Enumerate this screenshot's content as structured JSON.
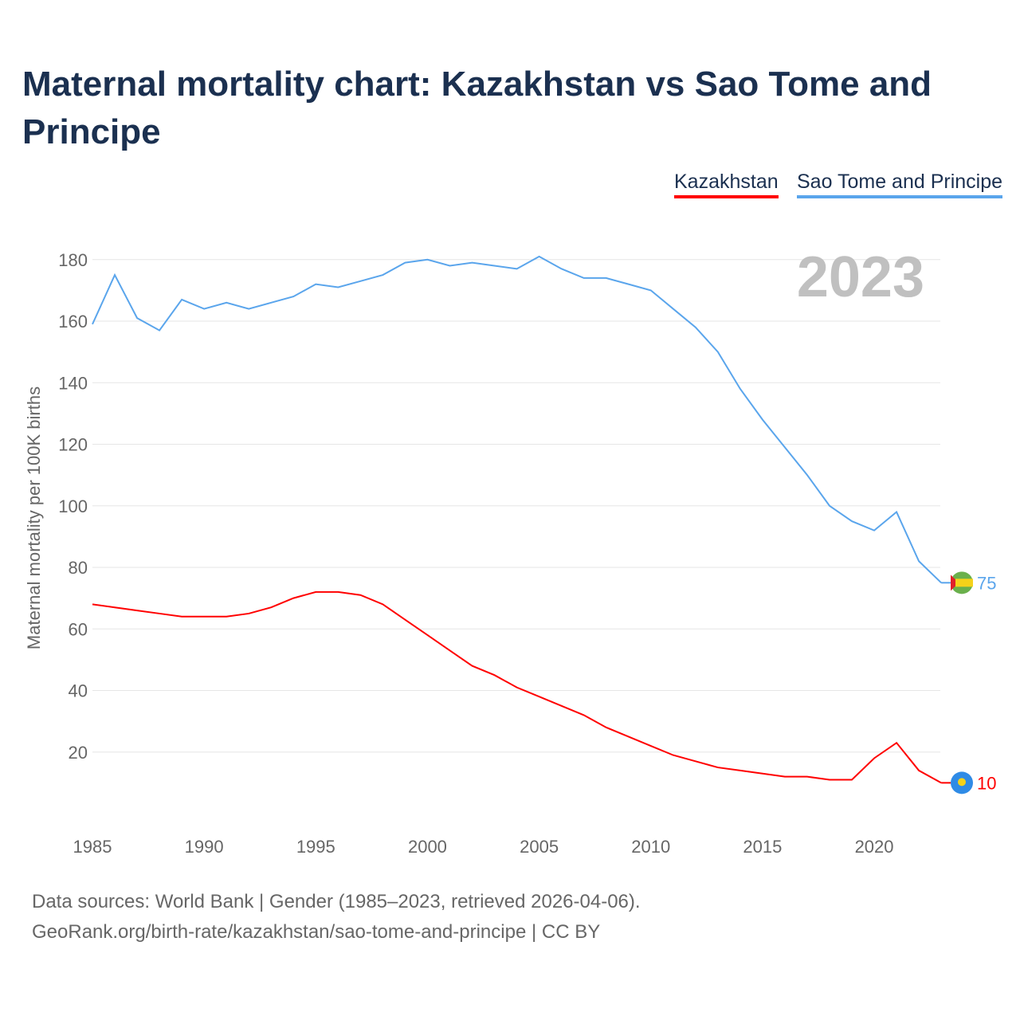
{
  "title": "Maternal mortality chart: Kazakhstan vs Sao Tome and Principe",
  "footer": {
    "line1": "Data sources: World Bank | Gender (1985–2023, retrieved 2026-04-06).",
    "line2": "GeoRank.org/birth-rate/kazakhstan/sao-tome-and-principe | CC BY"
  },
  "chart_data": {
    "type": "line",
    "title": "Maternal mortality chart: Kazakhstan vs Sao Tome and Principe",
    "ylabel": "Maternal mortality per 100K births",
    "xlabel": "",
    "year_label": "2023",
    "ylim": [
      0,
      190
    ],
    "xlim": [
      1985,
      2023
    ],
    "yticks": [
      20,
      40,
      60,
      80,
      100,
      120,
      140,
      160,
      180
    ],
    "xticks": [
      1985,
      1990,
      1995,
      2000,
      2005,
      2010,
      2015,
      2020
    ],
    "legend_position": "top-right",
    "x": [
      1985,
      1986,
      1987,
      1988,
      1989,
      1990,
      1991,
      1992,
      1993,
      1994,
      1995,
      1996,
      1997,
      1998,
      1999,
      2000,
      2001,
      2002,
      2003,
      2004,
      2005,
      2006,
      2007,
      2008,
      2009,
      2010,
      2011,
      2012,
      2013,
      2014,
      2015,
      2016,
      2017,
      2018,
      2019,
      2020,
      2021,
      2022,
      2023
    ],
    "series": [
      {
        "name": "Kazakhstan",
        "color": "#ff0000",
        "end_label": "10",
        "values": [
          68,
          67,
          66,
          65,
          64,
          64,
          64,
          65,
          67,
          70,
          72,
          72,
          71,
          68,
          63,
          58,
          53,
          48,
          45,
          41,
          38,
          35,
          32,
          28,
          25,
          22,
          19,
          17,
          15,
          14,
          13,
          12,
          12,
          11,
          11,
          18,
          23,
          14,
          10
        ]
      },
      {
        "name": "Sao Tome and Principe",
        "color": "#5aa5ec",
        "end_label": "75",
        "values": [
          159,
          175,
          161,
          157,
          167,
          164,
          166,
          164,
          166,
          168,
          172,
          171,
          173,
          175,
          179,
          180,
          178,
          179,
          178,
          177,
          181,
          177,
          174,
          174,
          172,
          170,
          164,
          158,
          150,
          138,
          128,
          119,
          110,
          100,
          95,
          92,
          98,
          82,
          75
        ]
      }
    ]
  }
}
